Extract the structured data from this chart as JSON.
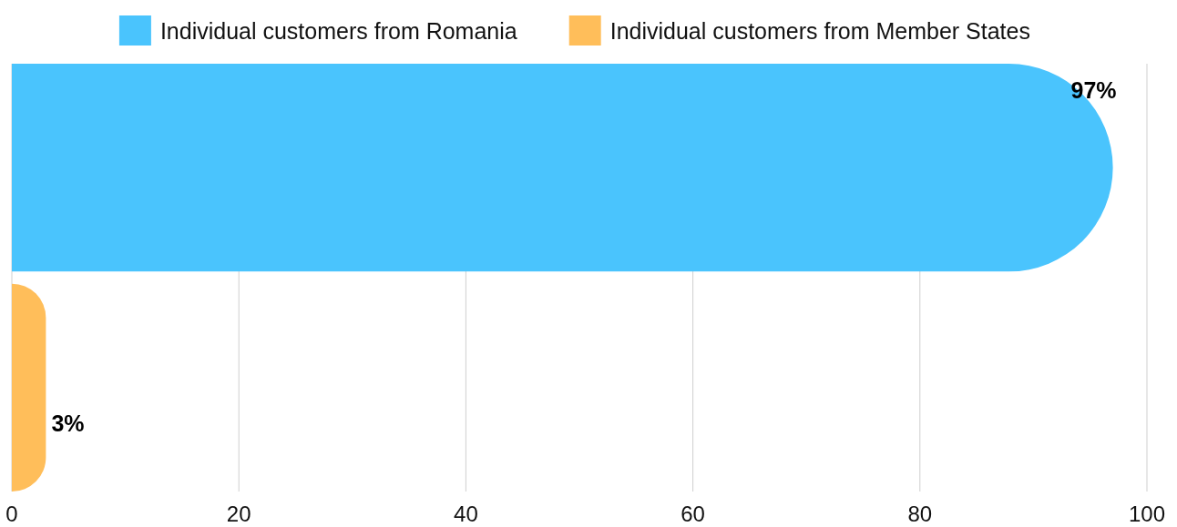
{
  "chart_data": {
    "type": "bar",
    "orientation": "horizontal",
    "categories": [
      null
    ],
    "series": [
      {
        "name": "Individual customers from Romania",
        "color": "#4ac4fd",
        "values": [
          97
        ],
        "value_labels": [
          "97%"
        ]
      },
      {
        "name": "Individual customers from Member States",
        "color": "#ffbe5a",
        "values": [
          3
        ],
        "value_labels": [
          "3%"
        ]
      }
    ],
    "xlim": [
      0,
      100
    ],
    "xticks": [
      0,
      20,
      40,
      60,
      80,
      100
    ],
    "grid": "x",
    "legend": "top"
  }
}
